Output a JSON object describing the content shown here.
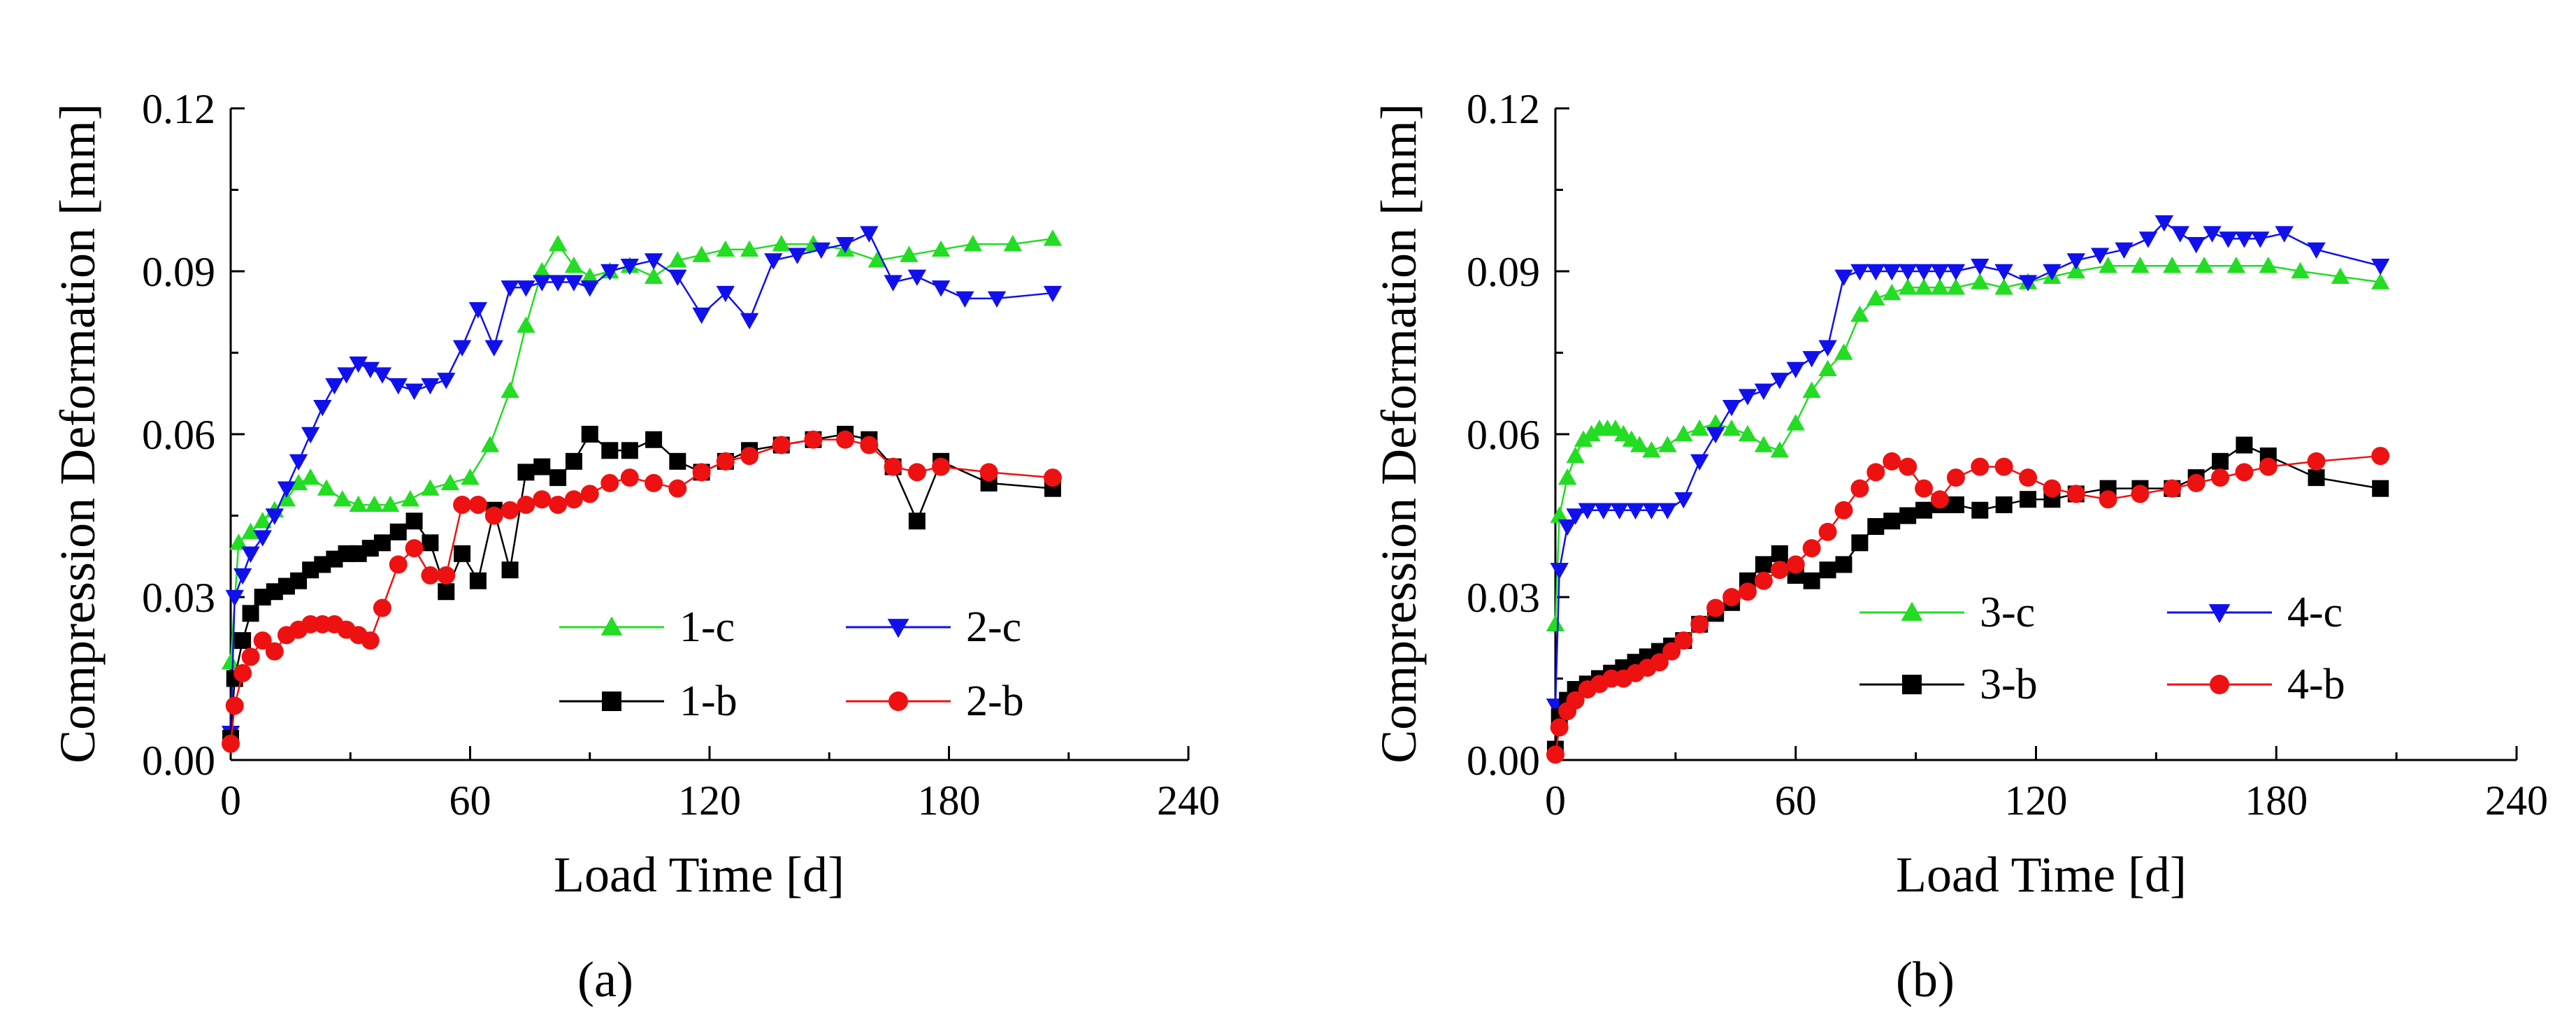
{
  "chart_data": [
    {
      "type": "line",
      "panel_label": "(a)",
      "xlabel": "Load Time [d]",
      "ylabel": "Compression Deformation [mm]",
      "xlim": [
        0,
        240
      ],
      "ylim": [
        0,
        0.12
      ],
      "xticks": [
        0,
        60,
        120,
        180,
        240
      ],
      "xtick_labels": [
        "0",
        "60",
        "120",
        "180",
        "240"
      ],
      "yticks": [
        0,
        0.03,
        0.06,
        0.09,
        0.12
      ],
      "ytick_labels": [
        "0.00",
        "0.03",
        "0.06",
        "0.09",
        "0.12"
      ],
      "grid": false,
      "legend_position": "bottom-right",
      "series": [
        {
          "name": "1-c",
          "color": "#22dd22",
          "marker": "triangle-up",
          "x": [
            0,
            2,
            5,
            8,
            11,
            14,
            17,
            20,
            24,
            28,
            32,
            36,
            40,
            45,
            50,
            55,
            60,
            65,
            70,
            74,
            78,
            82,
            86,
            90,
            95,
            100,
            106,
            112,
            118,
            124,
            130,
            138,
            146,
            154,
            162,
            170,
            178,
            186,
            196,
            206
          ],
          "y": [
            0.018,
            0.04,
            0.042,
            0.044,
            0.046,
            0.048,
            0.051,
            0.052,
            0.05,
            0.048,
            0.047,
            0.047,
            0.047,
            0.048,
            0.05,
            0.051,
            0.052,
            0.058,
            0.068,
            0.08,
            0.09,
            0.095,
            0.091,
            0.089,
            0.09,
            0.091,
            0.089,
            0.092,
            0.093,
            0.094,
            0.094,
            0.095,
            0.095,
            0.094,
            0.092,
            0.093,
            0.094,
            0.095,
            0.095,
            0.096
          ]
        },
        {
          "name": "2-c",
          "color": "#1010ee",
          "marker": "triangle-down",
          "x": [
            0,
            1,
            3,
            5,
            8,
            11,
            14,
            17,
            20,
            23,
            26,
            29,
            32,
            35,
            38,
            42,
            46,
            50,
            54,
            58,
            62,
            66,
            70,
            74,
            78,
            82,
            86,
            90,
            95,
            100,
            106,
            112,
            118,
            124,
            130,
            136,
            142,
            148,
            154,
            160,
            166,
            172,
            178,
            184,
            192,
            206
          ],
          "y": [
            0.005,
            0.03,
            0.034,
            0.038,
            0.041,
            0.045,
            0.05,
            0.055,
            0.06,
            0.065,
            0.069,
            0.071,
            0.073,
            0.072,
            0.071,
            0.069,
            0.068,
            0.069,
            0.07,
            0.076,
            0.083,
            0.076,
            0.087,
            0.087,
            0.088,
            0.088,
            0.088,
            0.087,
            0.09,
            0.091,
            0.092,
            0.089,
            0.082,
            0.086,
            0.081,
            0.092,
            0.093,
            0.094,
            0.095,
            0.097,
            0.088,
            0.089,
            0.087,
            0.085,
            0.085,
            0.086
          ]
        },
        {
          "name": "1-b",
          "color": "#000000",
          "marker": "square",
          "x": [
            0,
            1,
            3,
            5,
            8,
            11,
            14,
            17,
            20,
            23,
            26,
            29,
            32,
            35,
            38,
            42,
            46,
            50,
            54,
            58,
            62,
            66,
            70,
            74,
            78,
            82,
            86,
            90,
            95,
            100,
            106,
            112,
            118,
            124,
            130,
            138,
            146,
            154,
            160,
            166,
            172,
            178,
            190,
            206
          ],
          "y": [
            0.004,
            0.015,
            0.022,
            0.027,
            0.03,
            0.031,
            0.032,
            0.033,
            0.035,
            0.036,
            0.037,
            0.038,
            0.038,
            0.039,
            0.04,
            0.042,
            0.044,
            0.04,
            0.031,
            0.038,
            0.033,
            0.046,
            0.035,
            0.053,
            0.054,
            0.052,
            0.055,
            0.06,
            0.057,
            0.057,
            0.059,
            0.055,
            0.053,
            0.055,
            0.057,
            0.058,
            0.059,
            0.06,
            0.059,
            0.054,
            0.044,
            0.055,
            0.051,
            0.05
          ]
        },
        {
          "name": "2-b",
          "color": "#ee1111",
          "marker": "circle",
          "x": [
            0,
            1,
            3,
            5,
            8,
            11,
            14,
            17,
            20,
            23,
            26,
            29,
            32,
            35,
            38,
            42,
            46,
            50,
            54,
            58,
            62,
            66,
            70,
            74,
            78,
            82,
            86,
            90,
            95,
            100,
            106,
            112,
            118,
            124,
            130,
            138,
            146,
            154,
            160,
            166,
            172,
            178,
            190,
            206
          ],
          "y": [
            0.003,
            0.01,
            0.016,
            0.019,
            0.022,
            0.02,
            0.023,
            0.024,
            0.025,
            0.025,
            0.025,
            0.024,
            0.023,
            0.022,
            0.028,
            0.036,
            0.039,
            0.034,
            0.034,
            0.047,
            0.047,
            0.045,
            0.046,
            0.047,
            0.048,
            0.047,
            0.048,
            0.049,
            0.051,
            0.052,
            0.051,
            0.05,
            0.053,
            0.055,
            0.056,
            0.058,
            0.059,
            0.059,
            0.058,
            0.054,
            0.053,
            0.054,
            0.053,
            0.052
          ]
        }
      ]
    },
    {
      "type": "line",
      "panel_label": "(b)",
      "xlabel": "Load Time [d]",
      "ylabel": "Compression Deformation [mm]",
      "xlim": [
        0,
        240
      ],
      "ylim": [
        0,
        0.12
      ],
      "xticks": [
        0,
        60,
        120,
        180,
        240
      ],
      "xtick_labels": [
        "0",
        "60",
        "120",
        "180",
        "240"
      ],
      "yticks": [
        0,
        0.03,
        0.06,
        0.09,
        0.12
      ],
      "ytick_labels": [
        "0.00",
        "0.03",
        "0.06",
        "0.09",
        "0.12"
      ],
      "grid": false,
      "legend_position": "bottom-right",
      "series": [
        {
          "name": "3-c",
          "color": "#22dd22",
          "marker": "triangle-up",
          "x": [
            0,
            1,
            3,
            5,
            7,
            9,
            11,
            13,
            15,
            17,
            19,
            21,
            24,
            28,
            32,
            36,
            40,
            44,
            48,
            52,
            56,
            60,
            64,
            68,
            72,
            76,
            80,
            84,
            88,
            92,
            96,
            100,
            106,
            112,
            118,
            124,
            130,
            138,
            146,
            154,
            162,
            170,
            178,
            186,
            196,
            206
          ],
          "y": [
            0.025,
            0.045,
            0.052,
            0.056,
            0.059,
            0.06,
            0.061,
            0.061,
            0.061,
            0.06,
            0.059,
            0.058,
            0.057,
            0.058,
            0.06,
            0.061,
            0.062,
            0.061,
            0.06,
            0.058,
            0.057,
            0.062,
            0.068,
            0.072,
            0.075,
            0.082,
            0.085,
            0.086,
            0.087,
            0.087,
            0.087,
            0.087,
            0.088,
            0.087,
            0.088,
            0.089,
            0.09,
            0.091,
            0.091,
            0.091,
            0.091,
            0.091,
            0.091,
            0.09,
            0.089,
            0.088
          ]
        },
        {
          "name": "4-c",
          "color": "#1010ee",
          "marker": "triangle-down",
          "x": [
            0,
            1,
            3,
            5,
            8,
            12,
            16,
            20,
            24,
            28,
            32,
            36,
            40,
            44,
            48,
            52,
            56,
            60,
            64,
            68,
            72,
            76,
            80,
            84,
            88,
            92,
            96,
            100,
            106,
            112,
            118,
            124,
            130,
            136,
            142,
            148,
            152,
            156,
            160,
            164,
            168,
            172,
            176,
            182,
            190,
            206
          ],
          "y": [
            0.01,
            0.035,
            0.043,
            0.045,
            0.046,
            0.046,
            0.046,
            0.046,
            0.046,
            0.046,
            0.048,
            0.055,
            0.06,
            0.065,
            0.067,
            0.068,
            0.07,
            0.072,
            0.074,
            0.076,
            0.089,
            0.09,
            0.09,
            0.09,
            0.09,
            0.09,
            0.09,
            0.09,
            0.091,
            0.09,
            0.088,
            0.09,
            0.092,
            0.093,
            0.094,
            0.096,
            0.099,
            0.097,
            0.095,
            0.097,
            0.096,
            0.096,
            0.096,
            0.097,
            0.094,
            0.091
          ]
        },
        {
          "name": "3-b",
          "color": "#000000",
          "marker": "square",
          "x": [
            0,
            1,
            3,
            5,
            8,
            11,
            14,
            17,
            20,
            23,
            26,
            29,
            32,
            36,
            40,
            44,
            48,
            52,
            56,
            60,
            64,
            68,
            72,
            76,
            80,
            84,
            88,
            92,
            96,
            100,
            106,
            112,
            118,
            124,
            130,
            138,
            146,
            154,
            160,
            166,
            172,
            178,
            190,
            206
          ],
          "y": [
            0.002,
            0.008,
            0.011,
            0.013,
            0.014,
            0.015,
            0.016,
            0.017,
            0.018,
            0.019,
            0.02,
            0.021,
            0.022,
            0.025,
            0.027,
            0.029,
            0.033,
            0.036,
            0.038,
            0.034,
            0.033,
            0.035,
            0.036,
            0.04,
            0.043,
            0.044,
            0.045,
            0.046,
            0.047,
            0.047,
            0.046,
            0.047,
            0.048,
            0.048,
            0.049,
            0.05,
            0.05,
            0.05,
            0.052,
            0.055,
            0.058,
            0.056,
            0.052,
            0.05
          ]
        },
        {
          "name": "4-b",
          "color": "#ee1111",
          "marker": "circle",
          "x": [
            0,
            1,
            3,
            5,
            8,
            11,
            14,
            17,
            20,
            23,
            26,
            29,
            32,
            36,
            40,
            44,
            48,
            52,
            56,
            60,
            64,
            68,
            72,
            76,
            80,
            84,
            88,
            92,
            96,
            100,
            106,
            112,
            118,
            124,
            130,
            138,
            146,
            154,
            160,
            166,
            172,
            178,
            190,
            206
          ],
          "y": [
            0.001,
            0.006,
            0.009,
            0.011,
            0.013,
            0.014,
            0.015,
            0.015,
            0.016,
            0.017,
            0.018,
            0.02,
            0.022,
            0.025,
            0.028,
            0.03,
            0.031,
            0.033,
            0.035,
            0.036,
            0.039,
            0.042,
            0.046,
            0.05,
            0.053,
            0.055,
            0.054,
            0.05,
            0.048,
            0.052,
            0.054,
            0.054,
            0.052,
            0.05,
            0.049,
            0.048,
            0.049,
            0.05,
            0.051,
            0.052,
            0.053,
            0.054,
            0.055,
            0.056
          ]
        }
      ]
    }
  ]
}
